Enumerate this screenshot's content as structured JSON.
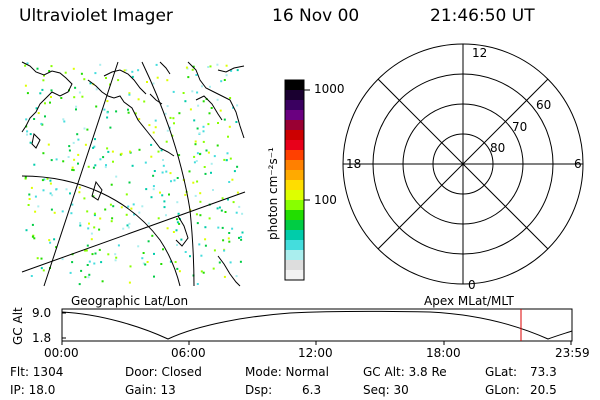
{
  "header": {
    "instrument": "Ultraviolet Imager",
    "date": "16 Nov 00",
    "time": "21:46:50 UT"
  },
  "colorbar": {
    "label": "photon cm⁻²s⁻¹",
    "ticks": [
      "1000",
      "100"
    ],
    "colors": [
      "#000000",
      "#1a0030",
      "#3a0060",
      "#6a0080",
      "#990033",
      "#cc0000",
      "#e8001a",
      "#ff4000",
      "#ff8000",
      "#ffaa00",
      "#ffdd00",
      "#ddff00",
      "#88ff00",
      "#22dd00",
      "#00cc44",
      "#00ccaa",
      "#44dddd",
      "#aaeeee",
      "#dddddd",
      "#f2f2f2"
    ]
  },
  "polar": {
    "mlt_labels": {
      "top": "12",
      "left": "18",
      "right": "6",
      "bottom": "0"
    },
    "lat_labels": [
      "60",
      "70",
      "80"
    ]
  },
  "panels": {
    "left_caption": "Geographic Lat/Lon",
    "right_caption": "Apex MLat/MLT"
  },
  "altitude_plot": {
    "ylabel": "GC Alt",
    "ymax_label": "9.0",
    "ymin_label": "1.8",
    "xticks": [
      "00:00",
      "06:00",
      "12:00",
      "18:00",
      "23:59"
    ],
    "marker_color": "#dd0000"
  },
  "info": {
    "flt": "Flt: 1304",
    "ip": "IP: 18.0",
    "door": "Door: Closed",
    "gain": "Gain: 13",
    "mode": "Mode: Normal",
    "dsp_label": "Dsp:",
    "dsp_value": "6.3",
    "gcalt": "GC Alt: 3.8 Re",
    "seq": "Seq: 30",
    "glat_label": "GLat:",
    "glat_value": "73.3",
    "glon_label": "GLon:",
    "glon_value": "20.5"
  }
}
